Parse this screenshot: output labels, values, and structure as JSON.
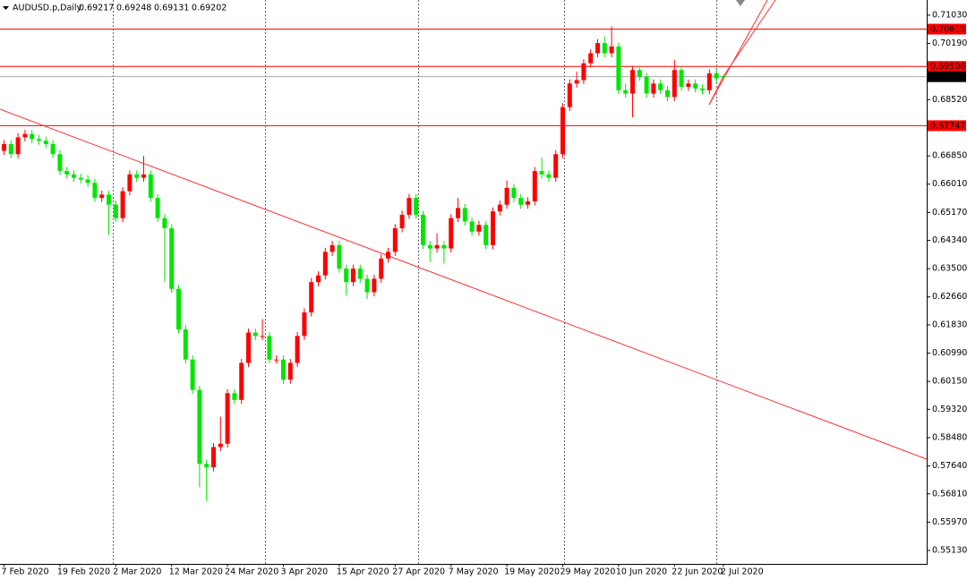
{
  "chart_data": {
    "type": "candlestick",
    "title": "AUDUSD.p,Daily",
    "categories": [
      "7 Feb 2020",
      null,
      null,
      null,
      null,
      null,
      null,
      null,
      "19 Feb 2020",
      null,
      null,
      null,
      null,
      null,
      null,
      null,
      "2 Mar 2020",
      null,
      null,
      null,
      null,
      null,
      null,
      null,
      "12 Mar 2020",
      null,
      null,
      null,
      null,
      null,
      null,
      null,
      "24 Mar 2020",
      null,
      null,
      null,
      null,
      null,
      null,
      null,
      "3 Apr 2020",
      null,
      null,
      null,
      null,
      null,
      null,
      null,
      "15 Apr 2020",
      null,
      null,
      null,
      null,
      null,
      null,
      null,
      "27 Apr 2020",
      null,
      null,
      null,
      null,
      null,
      null,
      null,
      "7 May 2020",
      null,
      null,
      null,
      null,
      null,
      null,
      null,
      "19 May 2020",
      null,
      null,
      null,
      null,
      null,
      null,
      null,
      "29 May 2020",
      null,
      null,
      null,
      null,
      null,
      null,
      null,
      "10 Jun 2020",
      null,
      null,
      null,
      null,
      null,
      null,
      null,
      "22 Jun 2020",
      null,
      null,
      null,
      null,
      null,
      null,
      "2 Jul 2020"
    ],
    "open": [
      0.67,
      0.672,
      0.669,
      0.674,
      0.675,
      0.6735,
      0.673,
      0.672,
      0.669,
      0.664,
      0.663,
      0.662,
      0.6615,
      0.6605,
      0.656,
      0.657,
      0.654,
      0.65,
      0.658,
      0.663,
      0.662,
      0.663,
      0.656,
      0.65,
      0.647,
      0.629,
      0.617,
      0.608,
      0.599,
      0.577,
      0.576,
      0.582,
      0.583,
      0.598,
      0.596,
      0.607,
      0.616,
      0.615,
      0.615,
      0.608,
      0.608,
      0.602,
      0.607,
      0.615,
      0.622,
      0.631,
      0.633,
      0.64,
      0.642,
      0.635,
      0.631,
      0.635,
      0.632,
      0.628,
      0.632,
      0.638,
      0.64,
      0.647,
      0.651,
      0.656,
      0.651,
      0.642,
      0.641,
      0.642,
      0.641,
      0.65,
      0.653,
      0.649,
      0.646,
      0.648,
      0.642,
      0.652,
      0.654,
      0.659,
      0.656,
      0.654,
      0.655,
      0.664,
      0.663,
      0.662,
      0.669,
      0.683,
      0.69,
      0.691,
      0.696,
      0.699,
      0.702,
      0.699,
      0.701,
      0.688,
      0.687,
      0.694,
      0.692,
      0.687,
      0.69,
      0.688,
      0.686,
      0.694,
      0.689,
      0.69,
      0.6885,
      0.688,
      0.693,
      0.69217
    ],
    "high": [
      0.6732,
      0.6732,
      0.6752,
      0.6762,
      0.6762,
      0.6747,
      0.6742,
      0.6732,
      0.6702,
      0.6652,
      0.6642,
      0.6632,
      0.6627,
      0.6617,
      0.6582,
      0.6582,
      0.6552,
      0.6592,
      0.6642,
      0.6642,
      0.6685,
      0.6642,
      0.6572,
      0.6512,
      0.6482,
      0.6302,
      0.6182,
      0.6092,
      0.6002,
      0.5782,
      0.5832,
      0.591,
      0.5992,
      0.5992,
      0.6082,
      0.6172,
      0.6172,
      0.62,
      0.6162,
      0.6092,
      0.6092,
      0.6082,
      0.6162,
      0.6232,
      0.6322,
      0.6342,
      0.6412,
      0.6432,
      0.6432,
      0.6362,
      0.6362,
      0.6362,
      0.6332,
      0.6332,
      0.6392,
      0.6412,
      0.6482,
      0.6522,
      0.6572,
      0.6572,
      0.6522,
      0.6432,
      0.6455,
      0.6432,
      0.6512,
      0.656,
      0.6542,
      0.6502,
      0.6492,
      0.6492,
      0.6532,
      0.6552,
      0.6612,
      0.6602,
      0.6572,
      0.6562,
      0.6652,
      0.668,
      0.6642,
      0.6702,
      0.6842,
      0.6912,
      0.6935,
      0.6972,
      0.7002,
      0.7032,
      0.704,
      0.707,
      0.7022,
      0.69,
      0.6952,
      0.6952,
      0.6932,
      0.6912,
      0.6912,
      0.6892,
      0.697,
      0.6952,
      0.6912,
      0.6912,
      0.6897,
      0.6942,
      0.6942,
      0.69248
    ],
    "low": [
      0.6688,
      0.6678,
      0.6678,
      0.6728,
      0.6723,
      0.6718,
      0.6708,
      0.6678,
      0.6628,
      0.6618,
      0.6608,
      0.6603,
      0.6593,
      0.6548,
      0.6548,
      0.645,
      0.6488,
      0.6488,
      0.6568,
      0.6608,
      0.6608,
      0.6548,
      0.6488,
      0.631,
      0.6278,
      0.6158,
      0.6068,
      0.5978,
      0.57,
      0.566,
      0.5748,
      0.5808,
      0.5818,
      0.5948,
      0.5948,
      0.6058,
      0.6138,
      0.6138,
      0.6068,
      0.6068,
      0.6008,
      0.6008,
      0.6058,
      0.6138,
      0.6208,
      0.6298,
      0.6318,
      0.6388,
      0.6338,
      0.627,
      0.6298,
      0.6308,
      0.626,
      0.6268,
      0.6308,
      0.6368,
      0.6388,
      0.6458,
      0.6498,
      0.6498,
      0.6408,
      0.637,
      0.6398,
      0.6365,
      0.6398,
      0.6488,
      0.6478,
      0.6448,
      0.6448,
      0.6408,
      0.6408,
      0.6508,
      0.6528,
      0.6548,
      0.6528,
      0.6528,
      0.6538,
      0.6618,
      0.6608,
      0.6608,
      0.6678,
      0.6818,
      0.6888,
      0.6898,
      0.6948,
      0.6978,
      0.6978,
      0.6978,
      0.6868,
      0.6858,
      0.68,
      0.6908,
      0.6858,
      0.6858,
      0.6868,
      0.6848,
      0.6848,
      0.6878,
      0.6878,
      0.6873,
      0.6868,
      0.6868,
      0.6903,
      0.69131
    ],
    "close": [
      0.672,
      0.669,
      0.674,
      0.675,
      0.6735,
      0.673,
      0.672,
      0.669,
      0.664,
      0.663,
      0.662,
      0.6615,
      0.6605,
      0.656,
      0.657,
      0.654,
      0.65,
      0.658,
      0.663,
      0.662,
      0.663,
      0.656,
      0.65,
      0.647,
      0.629,
      0.617,
      0.608,
      0.599,
      0.577,
      0.576,
      0.582,
      0.583,
      0.598,
      0.596,
      0.607,
      0.616,
      0.615,
      0.615,
      0.608,
      0.608,
      0.602,
      0.607,
      0.615,
      0.622,
      0.631,
      0.633,
      0.64,
      0.642,
      0.635,
      0.631,
      0.635,
      0.632,
      0.628,
      0.632,
      0.638,
      0.64,
      0.647,
      0.651,
      0.656,
      0.651,
      0.642,
      0.641,
      0.642,
      0.641,
      0.65,
      0.653,
      0.649,
      0.646,
      0.648,
      0.642,
      0.652,
      0.654,
      0.659,
      0.656,
      0.654,
      0.655,
      0.664,
      0.663,
      0.662,
      0.669,
      0.683,
      0.69,
      0.691,
      0.696,
      0.699,
      0.702,
      0.699,
      0.701,
      0.688,
      0.687,
      0.694,
      0.692,
      0.687,
      0.69,
      0.688,
      0.686,
      0.694,
      0.689,
      0.69,
      0.6885,
      0.688,
      0.693,
      0.6915,
      0.69202
    ],
    "up_color": "#ff0000",
    "down_color": "#00e600",
    "ylim": [
      0.5473,
      0.7148
    ],
    "yticks": [
      {
        "value": 0.7103,
        "label": "0.71030"
      },
      {
        "value": 0.7019,
        "label": "0.70190"
      },
      {
        "value": 0.6852,
        "label": "0.68520"
      },
      {
        "value": 0.6685,
        "label": "0.66850"
      },
      {
        "value": 0.6601,
        "label": "0.66010"
      },
      {
        "value": 0.6517,
        "label": "0.65170"
      },
      {
        "value": 0.6434,
        "label": "0.64340"
      },
      {
        "value": 0.635,
        "label": "0.63500"
      },
      {
        "value": 0.6266,
        "label": "0.62660"
      },
      {
        "value": 0.6183,
        "label": "0.61830"
      },
      {
        "value": 0.6099,
        "label": "0.60990"
      },
      {
        "value": 0.6015,
        "label": "0.60150"
      },
      {
        "value": 0.5932,
        "label": "0.59320"
      },
      {
        "value": 0.5848,
        "label": "0.58480"
      },
      {
        "value": 0.5764,
        "label": "0.57640"
      },
      {
        "value": 0.5681,
        "label": "0.56810"
      },
      {
        "value": 0.5597,
        "label": "0.55970"
      },
      {
        "value": 0.5513,
        "label": "0.55130"
      }
    ],
    "levels": [
      0.70615,
      0.69506,
      0.67747
    ],
    "level_color": "#ff0000",
    "current_color": "#000000"
  }
}
